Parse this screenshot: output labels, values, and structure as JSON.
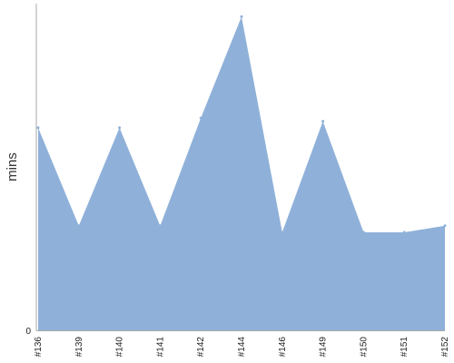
{
  "chart_data": {
    "type": "area",
    "ylabel": "mins",
    "xlabel": "",
    "title": "",
    "ylim": [
      0,
      100
    ],
    "ytick_labels": [
      "0"
    ],
    "grid": false,
    "legend": "none",
    "categories": [
      "#136",
      "#139",
      "#140",
      "#141",
      "#142",
      "#144",
      "#146",
      "#149",
      "#150",
      "#151",
      "#152"
    ],
    "values": [
      62,
      32,
      62,
      32,
      65,
      96,
      30,
      64,
      30,
      30,
      32
    ],
    "color": "#8fb1d9"
  }
}
